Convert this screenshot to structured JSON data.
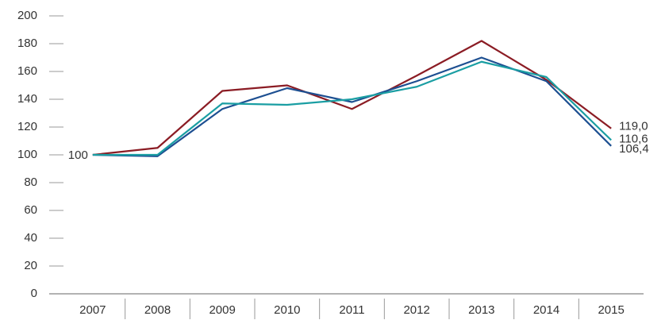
{
  "chart_data": {
    "type": "line",
    "categories": [
      "2007",
      "2008",
      "2009",
      "2010",
      "2011",
      "2012",
      "2013",
      "2014",
      "2015"
    ],
    "series": [
      {
        "color": "#8b1c24",
        "values": [
          100,
          105,
          146,
          150,
          133,
          157,
          182,
          154,
          119.0
        ],
        "value_labels": [
          "100",
          null,
          null,
          null,
          null,
          null,
          null,
          null,
          "119,0"
        ]
      },
      {
        "color": "#1d4f91",
        "values": [
          100,
          99,
          133,
          148,
          138,
          153,
          170,
          153,
          106.4
        ],
        "value_labels": [
          null,
          null,
          null,
          null,
          null,
          null,
          null,
          null,
          "106,4"
        ]
      },
      {
        "color": "#1a9ea3",
        "values": [
          100,
          100,
          137,
          136,
          140,
          149,
          167,
          156,
          110.6
        ],
        "value_labels": [
          null,
          null,
          null,
          null,
          null,
          null,
          null,
          null,
          "110,6"
        ]
      }
    ],
    "ylim": [
      0,
      200
    ],
    "yticks": [
      0,
      20,
      40,
      60,
      80,
      100,
      120,
      140,
      160,
      180,
      200
    ]
  }
}
